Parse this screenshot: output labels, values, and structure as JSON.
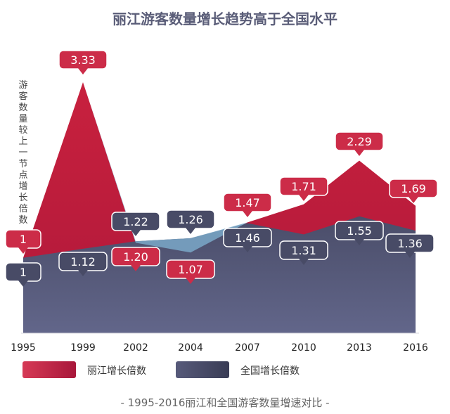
{
  "chart_data": {
    "type": "area",
    "title": "丽江游客数量增长趋势高于全国水平",
    "ylabel": "游客数量较上一节点增长倍数",
    "xlabel": "",
    "subtitle": "- 1995-2016丽江和全国游客数量增速对比 -",
    "categories": [
      "1995",
      "1999",
      "2002",
      "2004",
      "2007",
      "2010",
      "2013",
      "2016"
    ],
    "ylim": [
      0,
      3.6
    ],
    "grid": false,
    "legend_position": "bottom",
    "series": [
      {
        "name": "丽江增长倍数",
        "color": "#c41e3a",
        "values": [
          1,
          3.33,
          1.2,
          1.07,
          1.47,
          1.71,
          2.29,
          1.69
        ],
        "labels": [
          "1",
          "3.33",
          "1.20",
          "1.07",
          "1.47",
          "1.71",
          "2.29",
          "1.69"
        ]
      },
      {
        "name": "全国增长倍数",
        "color": "#3d4158",
        "values": [
          1,
          1.12,
          1.22,
          1.26,
          1.46,
          1.31,
          1.55,
          1.36
        ],
        "labels": [
          "1",
          "1.12",
          "1.22",
          "1.26",
          "1.46",
          "1.31",
          "1.55",
          "1.36"
        ]
      }
    ]
  }
}
